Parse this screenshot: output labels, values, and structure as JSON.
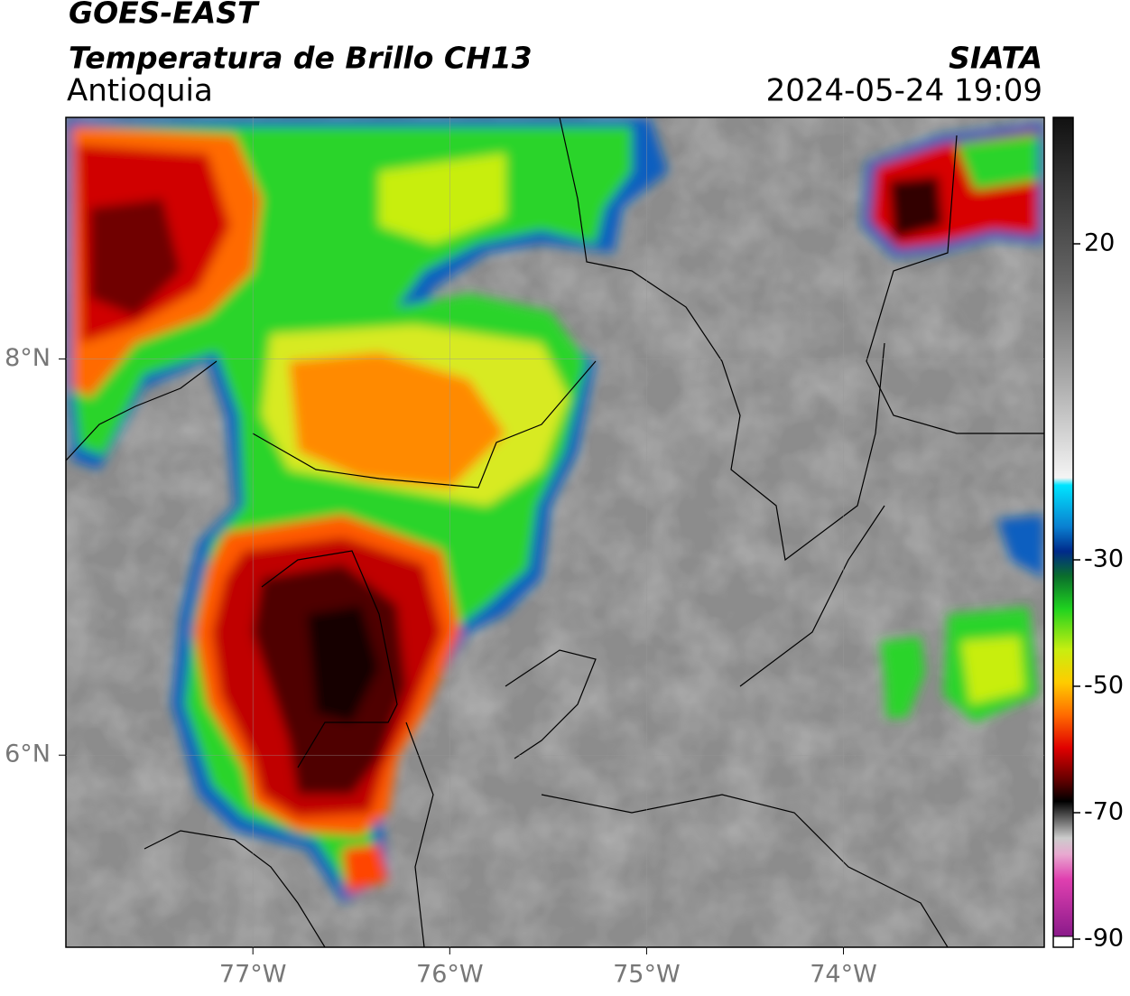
{
  "header": {
    "title": "GOES-EAST",
    "subtitle": "Temperatura de Brillo CH13",
    "region": "Antioquia",
    "source": "SIATA",
    "datetime": "2024-05-24 19:09"
  },
  "map": {
    "xlim": [
      -77.95,
      -72.98
    ],
    "ylim": [
      5.03,
      9.22
    ],
    "xticks": [
      {
        "value": -77,
        "label": "77°W"
      },
      {
        "value": -76,
        "label": "76°W"
      },
      {
        "value": -75,
        "label": "75°W"
      },
      {
        "value": -74,
        "label": "74°W"
      }
    ],
    "yticks": [
      {
        "value": 8,
        "label": "8°N"
      },
      {
        "value": 6,
        "label": "6°N"
      }
    ]
  },
  "colorbar": {
    "lim": [
      -91,
      40
    ],
    "ticks": [
      20,
      -30,
      -50,
      -70,
      -90
    ]
  }
}
